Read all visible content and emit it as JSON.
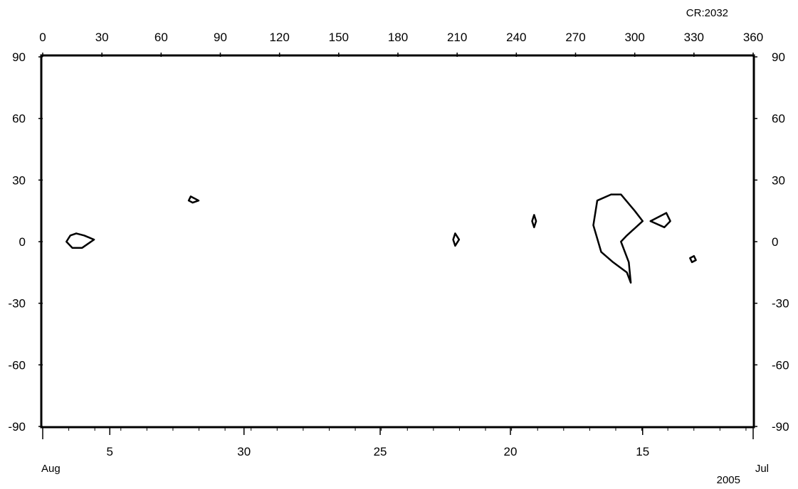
{
  "chart_data": {
    "type": "contour",
    "title": "CR:2032",
    "year_label": "2005",
    "line_color": "#000000",
    "top_axis": {
      "label": "",
      "range": [
        0,
        360
      ],
      "ticks": [
        0,
        30,
        60,
        90,
        120,
        150,
        180,
        210,
        240,
        270,
        300,
        330,
        360
      ],
      "tick_labels": [
        "0",
        "30",
        "60",
        "90",
        "120",
        "150",
        "180",
        "210",
        "240",
        "270",
        "300",
        "330",
        "360"
      ]
    },
    "y_axis": {
      "label": "",
      "range": [
        -90,
        90
      ],
      "ticks": [
        90,
        60,
        30,
        0,
        -30,
        -60,
        -90
      ],
      "tick_labels": [
        "90",
        "60",
        "30",
        "0",
        "-30",
        "-60",
        "-90"
      ]
    },
    "bottom_axis": {
      "day_labels": [
        {
          "text": "5",
          "carrington_longitude": 34
        },
        {
          "text": "30",
          "carrington_longitude": 102
        },
        {
          "text": "25",
          "carrington_longitude": 171
        },
        {
          "text": "20",
          "carrington_longitude": 237
        },
        {
          "text": "15",
          "carrington_longitude": 304
        }
      ],
      "month_labels": [
        {
          "text": "Aug",
          "carrington_longitude": 0
        },
        {
          "text": "Jul",
          "carrington_longitude": 360
        }
      ]
    },
    "contours": [
      {
        "name": "",
        "points": [
          [
            17,
            4
          ],
          [
            14,
            3
          ],
          [
            12,
            0
          ],
          [
            15,
            -3
          ],
          [
            20,
            -3
          ],
          [
            26,
            1
          ],
          [
            21,
            3
          ],
          [
            17,
            4
          ]
        ]
      },
      {
        "name": "",
        "points": [
          [
            75,
            22
          ],
          [
            79,
            20
          ],
          [
            76,
            19
          ],
          [
            74,
            20
          ],
          [
            75,
            22
          ]
        ]
      },
      {
        "name": "",
        "points": [
          [
            209,
            4
          ],
          [
            211,
            1
          ],
          [
            209,
            -2
          ],
          [
            208,
            1
          ],
          [
            209,
            4
          ]
        ]
      },
      {
        "name": "",
        "points": [
          [
            249,
            13
          ],
          [
            250,
            10
          ],
          [
            249,
            7
          ],
          [
            248,
            10
          ],
          [
            249,
            13
          ]
        ]
      },
      {
        "name": "",
        "points": [
          [
            288,
            23
          ],
          [
            293,
            23
          ],
          [
            300,
            15
          ],
          [
            304,
            10
          ],
          [
            296,
            3
          ],
          [
            293,
            0
          ],
          [
            297,
            -10
          ],
          [
            298,
            -20
          ],
          [
            296,
            -15
          ],
          [
            289,
            -10
          ],
          [
            283,
            -5
          ],
          [
            279,
            8
          ],
          [
            281,
            20
          ],
          [
            288,
            23
          ]
        ]
      },
      {
        "name": "",
        "points": [
          [
            308,
            10
          ],
          [
            316,
            14
          ],
          [
            318,
            10
          ],
          [
            315,
            7
          ],
          [
            308,
            10
          ]
        ]
      },
      {
        "name": "",
        "points": [
          [
            330,
            -7
          ],
          [
            331,
            -9
          ],
          [
            329,
            -10
          ],
          [
            328,
            -8
          ],
          [
            330,
            -7
          ]
        ]
      }
    ]
  }
}
